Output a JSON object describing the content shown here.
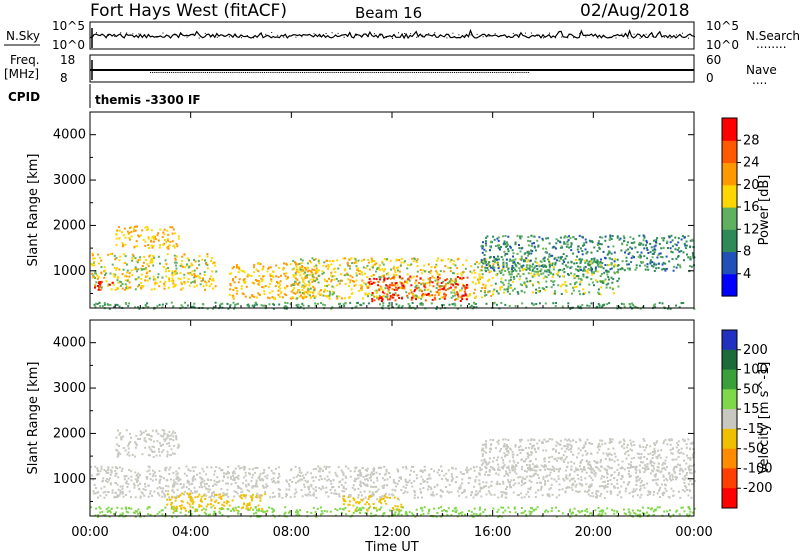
{
  "header": {
    "station": "Fort Hays West (fitACF)",
    "beam": "Beam 16",
    "date": "02/Aug/2018"
  },
  "left_labels": {
    "nsky": "N.Sky",
    "freq_line1": "Freq.",
    "freq_line2": "[MHz]",
    "cpid": "CPID"
  },
  "right_labels": {
    "nsearch": "N.Search",
    "nave": "Nave",
    "nsearch_key": "........",
    "nave_key": "...."
  },
  "noise_panel": {
    "ticks_left": [
      "10^5",
      "10^0"
    ],
    "ticks_right": [
      "10^5",
      "10^0"
    ]
  },
  "freq_panel": {
    "ticks_left": [
      "18",
      "8"
    ],
    "ticks_right": [
      "60",
      "0"
    ]
  },
  "cpid_text": "themis -3300 IF",
  "xaxis": {
    "label": "Time UT",
    "ticks": [
      "00:00",
      "04:00",
      "08:00",
      "12:00",
      "16:00",
      "20:00",
      "00:00"
    ]
  },
  "colors": {
    "power": [
      "#0000ff",
      "#2050b8",
      "#2e8b57",
      "#5fb05f",
      "#ffd700",
      "#ff9900",
      "#ff5a00",
      "#ff0000"
    ],
    "velocity": [
      "#2030c0",
      "#1e6b3a",
      "#3aa03a",
      "#7fd84a",
      "#c8c8c0",
      "#f0c000",
      "#ff8c00",
      "#ff4000",
      "#ff0000"
    ]
  },
  "chart_data": [
    {
      "type": "heatmap",
      "title": "",
      "xlabel": "",
      "ylabel": "Slant Range [km]",
      "xlim": [
        0,
        24
      ],
      "ylim": [
        180,
        4500
      ],
      "yticks": [
        1000,
        2000,
        3000,
        4000
      ],
      "colorbar": {
        "label": "Power [dB]",
        "ticks": [
          "4",
          "8",
          "12",
          "16",
          "20",
          "24",
          "28"
        ],
        "range": [
          0,
          32
        ]
      },
      "regions": [
        {
          "x": [
            0.0,
            5.0
          ],
          "y": [
            600,
            1400
          ],
          "value": 18
        },
        {
          "x": [
            0.0,
            1.0
          ],
          "y": [
            600,
            800
          ],
          "value": 30
        },
        {
          "x": [
            5.5,
            9.0
          ],
          "y": [
            400,
            1200
          ],
          "value": 20
        },
        {
          "x": [
            8.0,
            16.0
          ],
          "y": [
            400,
            1300
          ],
          "value": 18
        },
        {
          "x": [
            11.0,
            15.0
          ],
          "y": [
            350,
            900
          ],
          "value": 28
        },
        {
          "x": [
            16.0,
            21.0
          ],
          "y": [
            500,
            1300
          ],
          "value": 14
        },
        {
          "x": [
            15.5,
            24.0
          ],
          "y": [
            1000,
            1800
          ],
          "value": 10
        },
        {
          "x": [
            1.0,
            3.5
          ],
          "y": [
            1500,
            2000
          ],
          "value": 20
        },
        {
          "x": [
            0.0,
            24.0
          ],
          "y": [
            180,
            320
          ],
          "value": 12
        }
      ]
    },
    {
      "type": "heatmap",
      "title": "",
      "xlabel": "Time UT",
      "ylabel": "Slant Range [km]",
      "xlim": [
        0,
        24
      ],
      "ylim": [
        180,
        4500
      ],
      "yticks": [
        1000,
        2000,
        3000,
        4000
      ],
      "colorbar": {
        "label": "Velocity [m s^-1]",
        "ticks": [
          "-200",
          "-100",
          "-50",
          "-15",
          "15",
          "50",
          "100",
          "200"
        ],
        "range": [
          -250,
          250
        ]
      },
      "regions": [
        {
          "x": [
            0.0,
            24.0
          ],
          "y": [
            600,
            1300
          ],
          "value": 0
        },
        {
          "x": [
            1.0,
            3.5
          ],
          "y": [
            1500,
            2100
          ],
          "value": 0
        },
        {
          "x": [
            15.5,
            24.0
          ],
          "y": [
            1200,
            1900
          ],
          "value": 0
        },
        {
          "x": [
            3.0,
            7.0
          ],
          "y": [
            300,
            700
          ],
          "value": -60
        },
        {
          "x": [
            10.0,
            12.5
          ],
          "y": [
            300,
            650
          ],
          "value": -40
        },
        {
          "x": [
            0.0,
            24.0
          ],
          "y": [
            180,
            400
          ],
          "value": 60
        }
      ]
    }
  ]
}
